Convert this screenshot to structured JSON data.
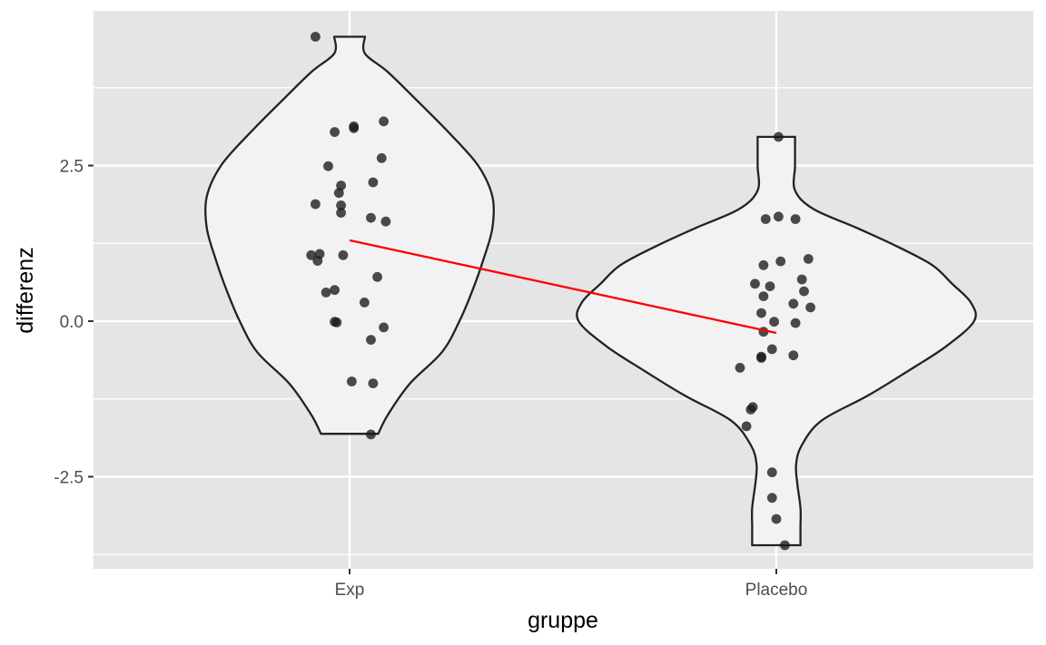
{
  "chart_data": {
    "type": "violin",
    "title": "",
    "xlabel": "gruppe",
    "ylabel": "differenz",
    "categories": [
      "Exp",
      "Placebo"
    ],
    "ylim": [
      -3.8,
      4.95
    ],
    "yticks": [
      -2.5,
      0.0,
      2.5
    ],
    "ytick_labels": [
      "-2.5",
      "0.0",
      "2.5"
    ],
    "grid": true,
    "colors": {
      "panel": "#e5e5e5",
      "gridline": "#ffffff",
      "violin_fill": "#f2f2f2",
      "violin_stroke": "#222222",
      "points": "#1a1a1a",
      "mean_line": "#ff0000"
    },
    "violins": [
      {
        "category": "Exp",
        "min": -1.81,
        "max": 4.57,
        "density": [
          [
            -1.81,
            0.26
          ],
          [
            -1.5,
            0.35
          ],
          [
            -1.0,
            0.55
          ],
          [
            -0.5,
            0.84
          ],
          [
            0.0,
            1.0
          ],
          [
            0.5,
            1.12
          ],
          [
            1.0,
            1.22
          ],
          [
            1.5,
            1.3
          ],
          [
            2.0,
            1.3
          ],
          [
            2.5,
            1.17
          ],
          [
            3.0,
            0.92
          ],
          [
            3.5,
            0.64
          ],
          [
            4.0,
            0.35
          ],
          [
            4.3,
            0.14
          ],
          [
            4.57,
            0.14
          ]
        ]
      },
      {
        "category": "Placebo",
        "min": -3.6,
        "max": 2.96,
        "density": [
          [
            -3.6,
            0.22
          ],
          [
            -3.3,
            0.22
          ],
          [
            -3.0,
            0.22
          ],
          [
            -2.6,
            0.19
          ],
          [
            -2.3,
            0.18
          ],
          [
            -2.0,
            0.23
          ],
          [
            -1.6,
            0.41
          ],
          [
            -1.2,
            0.83
          ],
          [
            -0.8,
            1.2
          ],
          [
            -0.4,
            1.55
          ],
          [
            0.0,
            1.8
          ],
          [
            0.3,
            1.77
          ],
          [
            0.6,
            1.6
          ],
          [
            0.9,
            1.42
          ],
          [
            1.2,
            1.1
          ],
          [
            1.5,
            0.73
          ],
          [
            1.8,
            0.34
          ],
          [
            2.1,
            0.17
          ],
          [
            2.5,
            0.17
          ],
          [
            2.96,
            0.17
          ]
        ]
      }
    ],
    "points": [
      {
        "category": "Exp",
        "jitter": -0.16,
        "y": 4.57
      },
      {
        "category": "Exp",
        "jitter": -0.07,
        "y": 3.04
      },
      {
        "category": "Exp",
        "jitter": 0.02,
        "y": 3.13
      },
      {
        "category": "Exp",
        "jitter": 0.02,
        "y": 3.1
      },
      {
        "category": "Exp",
        "jitter": 0.16,
        "y": 3.21
      },
      {
        "category": "Exp",
        "jitter": 0.15,
        "y": 2.62
      },
      {
        "category": "Exp",
        "jitter": -0.1,
        "y": 2.49
      },
      {
        "category": "Exp",
        "jitter": 0.11,
        "y": 2.23
      },
      {
        "category": "Exp",
        "jitter": -0.04,
        "y": 2.18
      },
      {
        "category": "Exp",
        "jitter": -0.05,
        "y": 2.06
      },
      {
        "category": "Exp",
        "jitter": -0.16,
        "y": 1.88
      },
      {
        "category": "Exp",
        "jitter": -0.04,
        "y": 1.86
      },
      {
        "category": "Exp",
        "jitter": -0.04,
        "y": 1.74
      },
      {
        "category": "Exp",
        "jitter": 0.1,
        "y": 1.66
      },
      {
        "category": "Exp",
        "jitter": 0.17,
        "y": 1.6
      },
      {
        "category": "Exp",
        "jitter": -0.18,
        "y": 1.06
      },
      {
        "category": "Exp",
        "jitter": -0.14,
        "y": 1.08
      },
      {
        "category": "Exp",
        "jitter": -0.15,
        "y": 0.97
      },
      {
        "category": "Exp",
        "jitter": -0.03,
        "y": 1.06
      },
      {
        "category": "Exp",
        "jitter": 0.13,
        "y": 0.71
      },
      {
        "category": "Exp",
        "jitter": -0.07,
        "y": 0.5
      },
      {
        "category": "Exp",
        "jitter": -0.11,
        "y": 0.46
      },
      {
        "category": "Exp",
        "jitter": 0.07,
        "y": 0.3
      },
      {
        "category": "Exp",
        "jitter": -0.07,
        "y": -0.01
      },
      {
        "category": "Exp",
        "jitter": -0.06,
        "y": -0.02
      },
      {
        "category": "Exp",
        "jitter": 0.16,
        "y": -0.1
      },
      {
        "category": "Exp",
        "jitter": 0.1,
        "y": -0.3
      },
      {
        "category": "Exp",
        "jitter": 0.01,
        "y": -0.97
      },
      {
        "category": "Exp",
        "jitter": 0.11,
        "y": -1.0
      },
      {
        "category": "Exp",
        "jitter": 0.1,
        "y": -1.82
      },
      {
        "category": "Placebo",
        "jitter": 0.01,
        "y": 2.96
      },
      {
        "category": "Placebo",
        "jitter": -0.05,
        "y": 1.64
      },
      {
        "category": "Placebo",
        "jitter": 0.01,
        "y": 1.68
      },
      {
        "category": "Placebo",
        "jitter": 0.09,
        "y": 1.64
      },
      {
        "category": "Placebo",
        "jitter": 0.15,
        "y": 1.0
      },
      {
        "category": "Placebo",
        "jitter": 0.02,
        "y": 0.96
      },
      {
        "category": "Placebo",
        "jitter": -0.06,
        "y": 0.9
      },
      {
        "category": "Placebo",
        "jitter": 0.12,
        "y": 0.67
      },
      {
        "category": "Placebo",
        "jitter": -0.1,
        "y": 0.6
      },
      {
        "category": "Placebo",
        "jitter": -0.03,
        "y": 0.56
      },
      {
        "category": "Placebo",
        "jitter": 0.13,
        "y": 0.48
      },
      {
        "category": "Placebo",
        "jitter": -0.06,
        "y": 0.4
      },
      {
        "category": "Placebo",
        "jitter": 0.08,
        "y": 0.28
      },
      {
        "category": "Placebo",
        "jitter": 0.16,
        "y": 0.22
      },
      {
        "category": "Placebo",
        "jitter": -0.07,
        "y": 0.13
      },
      {
        "category": "Placebo",
        "jitter": -0.01,
        "y": -0.01
      },
      {
        "category": "Placebo",
        "jitter": 0.09,
        "y": -0.03
      },
      {
        "category": "Placebo",
        "jitter": -0.06,
        "y": -0.17
      },
      {
        "category": "Placebo",
        "jitter": -0.02,
        "y": -0.45
      },
      {
        "category": "Placebo",
        "jitter": 0.08,
        "y": -0.55
      },
      {
        "category": "Placebo",
        "jitter": -0.07,
        "y": -0.59
      },
      {
        "category": "Placebo",
        "jitter": -0.07,
        "y": -0.57
      },
      {
        "category": "Placebo",
        "jitter": -0.17,
        "y": -0.75
      },
      {
        "category": "Placebo",
        "jitter": -0.11,
        "y": -1.38
      },
      {
        "category": "Placebo",
        "jitter": -0.12,
        "y": -1.42
      },
      {
        "category": "Placebo",
        "jitter": -0.14,
        "y": -1.69
      },
      {
        "category": "Placebo",
        "jitter": -0.02,
        "y": -2.43
      },
      {
        "category": "Placebo",
        "jitter": -0.02,
        "y": -2.84
      },
      {
        "category": "Placebo",
        "jitter": 0.0,
        "y": -3.18
      },
      {
        "category": "Placebo",
        "jitter": 0.04,
        "y": -3.6
      }
    ],
    "mean_line": [
      {
        "category": "Exp",
        "y": 1.3
      },
      {
        "category": "Placebo",
        "y": -0.19
      }
    ]
  }
}
